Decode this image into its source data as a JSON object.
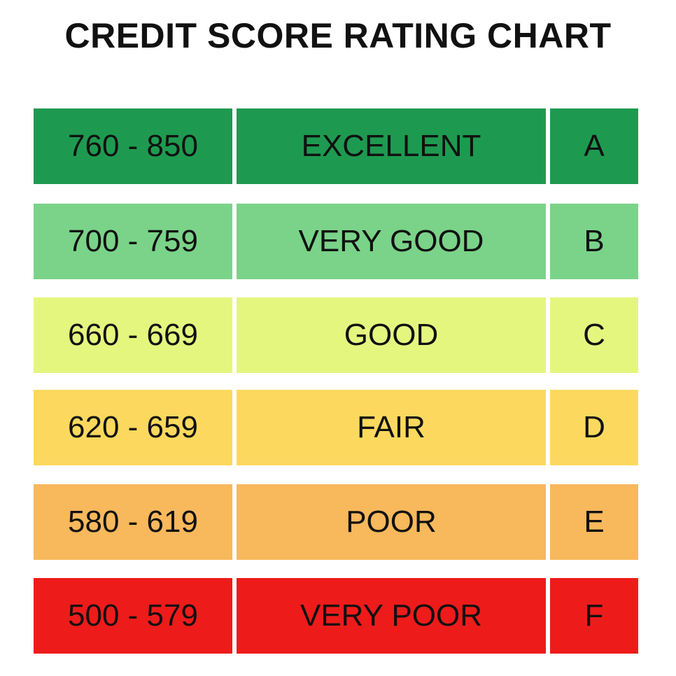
{
  "chart_data": {
    "type": "table",
    "title": "CREDIT SCORE RATING CHART",
    "rows": [
      {
        "range": "760 - 850",
        "rating": "EXCELLENT",
        "grade": "A",
        "color": "#1e9a50"
      },
      {
        "range": "700 - 759",
        "rating": "VERY GOOD",
        "grade": "B",
        "color": "#7ad389"
      },
      {
        "range": "660 - 669",
        "rating": "GOOD",
        "grade": "C",
        "color": "#e5f67f"
      },
      {
        "range": "620 - 659",
        "rating": "FAIR",
        "grade": "D",
        "color": "#fcd95e"
      },
      {
        "range": "580 - 619",
        "rating": "POOR",
        "grade": "E",
        "color": "#f8b85c"
      },
      {
        "range": "500 - 579",
        "rating": "VERY POOR",
        "grade": "F",
        "color": "#ee1b1b"
      }
    ]
  }
}
